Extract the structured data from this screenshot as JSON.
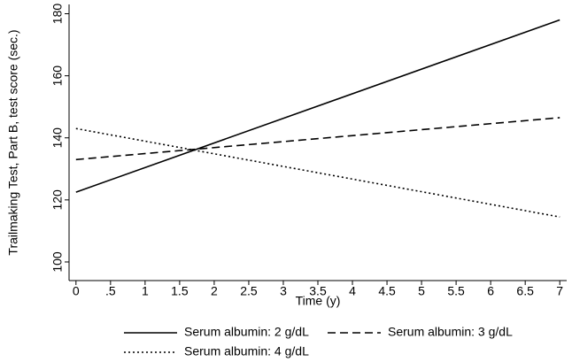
{
  "chart_data": {
    "type": "line",
    "x_label": "Time (y)",
    "y_label": "Trailmaking Test, Part B, test score (sec.)",
    "x": [
      0,
      7
    ],
    "series": [
      {
        "name": "Serum albumin: 2 g/dL",
        "color": "#000000",
        "line_style": "solid",
        "values": [
          122.5,
          178
        ]
      },
      {
        "name": "Serum albumin: 3 g/dL",
        "color": "#000000",
        "line_style": "dashed",
        "values": [
          133,
          146.5
        ]
      },
      {
        "name": "Serum albumin: 4 g/dL",
        "color": "#000000",
        "line_style": "dotted",
        "values": [
          143,
          114.5
        ]
      }
    ],
    "xlim": [
      -0.1,
      7.1
    ],
    "xticks": [
      0,
      {
        "value": 0.5,
        "label": ".5"
      },
      1,
      1.5,
      2,
      2.5,
      3,
      3.5,
      4,
      4.5,
      5,
      5.5,
      6,
      6.5,
      7
    ],
    "ylim": [
      94,
      183
    ],
    "yticks": [
      100,
      120,
      140,
      160,
      180
    ],
    "legend": "bottom"
  }
}
